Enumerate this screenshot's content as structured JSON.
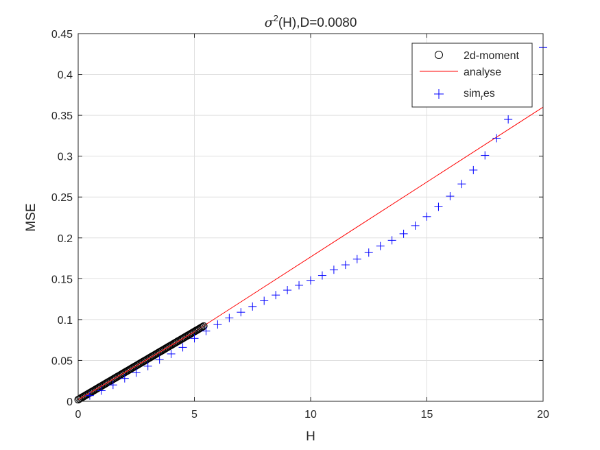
{
  "chart_data": {
    "type": "line",
    "title": "σ²(H),D=0.0080",
    "title_parts": {
      "symbol": "σ",
      "superscript": "2",
      "rest": "(H),D=0.0080"
    },
    "xlabel": "H",
    "ylabel": "MSE",
    "xlim": [
      0,
      20
    ],
    "ylim": [
      0,
      0.45
    ],
    "x_ticks": [
      "0",
      "5",
      "10",
      "15",
      "20"
    ],
    "y_ticks": [
      "0",
      "0.05",
      "0.1",
      "0.15",
      "0.2",
      "0.25",
      "0.3",
      "0.35",
      "0.4",
      "0.45"
    ],
    "grid": true,
    "legend_position": "top-right",
    "series": [
      {
        "name": "2d-moment",
        "marker": "circle",
        "color": "#000000",
        "x_range": [
          0,
          5.4
        ],
        "y_range": [
          0.002,
          0.092
        ],
        "count": 110
      },
      {
        "name": "analyse",
        "marker": "line",
        "color": "#ff0000",
        "x": [
          0,
          5,
          20
        ],
        "y": [
          0.002,
          0.085,
          0.36
        ]
      },
      {
        "name": "sim_res",
        "legend_label": {
          "base": "sim",
          "subscript": "r",
          "rest": "es"
        },
        "marker": "plus",
        "color": "#0000ff",
        "x": [
          0.5,
          1,
          1.5,
          2,
          2.5,
          3,
          3.5,
          4,
          4.5,
          5,
          5.5,
          6,
          6.5,
          7,
          7.5,
          8,
          8.5,
          9,
          9.5,
          10,
          10.5,
          11,
          11.5,
          12,
          12.5,
          13,
          13.5,
          14,
          14.5,
          15,
          15.5,
          16,
          16.5,
          17,
          17.5,
          18,
          18.5,
          20
        ],
        "y": [
          0.007,
          0.013,
          0.02,
          0.028,
          0.035,
          0.043,
          0.051,
          0.058,
          0.066,
          0.077,
          0.086,
          0.094,
          0.102,
          0.109,
          0.116,
          0.123,
          0.13,
          0.136,
          0.142,
          0.148,
          0.154,
          0.161,
          0.167,
          0.174,
          0.182,
          0.19,
          0.197,
          0.205,
          0.215,
          0.226,
          0.238,
          0.251,
          0.266,
          0.283,
          0.301,
          0.322,
          0.345,
          0.433
        ]
      }
    ]
  }
}
